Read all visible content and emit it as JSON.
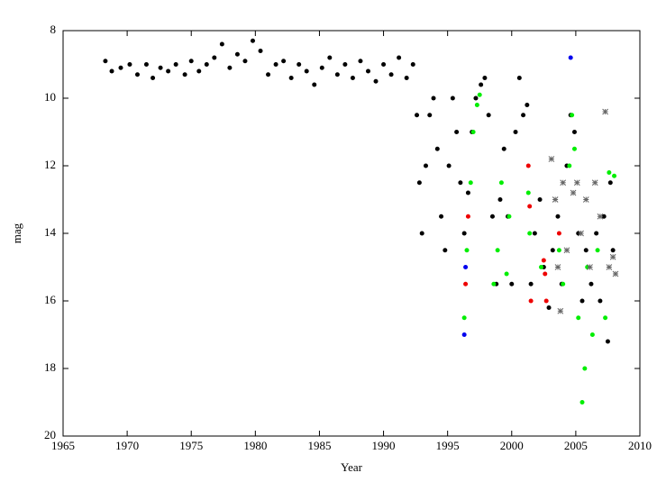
{
  "chart_data": {
    "type": "scatter",
    "xlabel": "Year",
    "ylabel": "mag",
    "xlim": [
      1965,
      2010
    ],
    "xticks": [
      1965,
      1970,
      1975,
      1980,
      1985,
      1990,
      1995,
      2000,
      2005,
      2010
    ],
    "ylim": [
      8,
      20
    ],
    "yticks": [
      8,
      10,
      12,
      14,
      16,
      18,
      20
    ],
    "invert_y": true,
    "grid": false,
    "series": [
      {
        "color": "#000000",
        "marker": "dot",
        "x": [
          1968.3,
          1968.8,
          1969.5,
          1970.2,
          1970.8,
          1971.5,
          1972.0,
          1972.6,
          1973.2,
          1973.8,
          1974.5,
          1975.0,
          1975.6,
          1976.2,
          1976.8,
          1977.4,
          1978.0,
          1978.6,
          1979.2,
          1979.8,
          1980.4,
          1981.0,
          1981.6,
          1982.2,
          1982.8,
          1983.4,
          1984.0,
          1984.6,
          1985.2,
          1985.8,
          1986.4,
          1987.0,
          1987.6,
          1988.2,
          1988.8,
          1989.4,
          1990.0,
          1990.6,
          1991.2,
          1991.8,
          1992.3,
          1992.6,
          1992.8,
          1993.0,
          1993.3,
          1993.6,
          1993.9,
          1994.2,
          1994.5,
          1994.8,
          1995.1,
          1995.4,
          1995.7,
          1996.0,
          1996.3,
          1996.6,
          1996.9,
          1997.2,
          1997.6,
          1997.9,
          1998.2,
          1998.5,
          1998.8,
          1999.1,
          1999.4,
          1999.7,
          2000.0,
          2000.3,
          2000.6,
          2000.9,
          2001.2,
          2001.5,
          2001.8,
          2002.2,
          2002.5,
          2002.9,
          2003.2,
          2003.6,
          2003.9,
          2004.3,
          2004.6,
          2004.9,
          2005.2,
          2005.5,
          2005.8,
          2006.2,
          2006.6,
          2006.9,
          2007.2,
          2007.5,
          2007.7,
          2007.9
        ],
        "values": [
          8.9,
          9.2,
          9.1,
          9.0,
          9.3,
          9.0,
          9.4,
          9.1,
          9.2,
          9.0,
          9.3,
          8.9,
          9.2,
          9.0,
          8.8,
          8.4,
          9.1,
          8.7,
          8.9,
          8.3,
          8.6,
          9.3,
          9.0,
          8.9,
          9.4,
          9.0,
          9.2,
          9.6,
          9.1,
          8.8,
          9.3,
          9.0,
          9.4,
          8.9,
          9.2,
          9.5,
          9.0,
          9.3,
          8.8,
          9.4,
          9.0,
          10.5,
          12.5,
          14.0,
          12.0,
          10.5,
          10.0,
          11.5,
          13.5,
          14.5,
          12.0,
          10.0,
          11.0,
          12.5,
          14.0,
          12.8,
          11.0,
          10.0,
          9.6,
          9.4,
          10.5,
          13.5,
          15.5,
          13.0,
          11.5,
          13.5,
          15.5,
          11.0,
          9.4,
          10.5,
          10.2,
          15.5,
          14.0,
          13.0,
          15.0,
          16.2,
          14.5,
          13.5,
          15.5,
          12.0,
          10.5,
          11.0,
          14.0,
          16.0,
          14.5,
          15.5,
          14.0,
          16.0,
          13.5,
          17.2,
          12.5,
          14.5
        ]
      },
      {
        "color": "#00ee00",
        "marker": "dot",
        "x": [
          1996.3,
          1996.5,
          1996.8,
          1997.0,
          1997.3,
          1997.5,
          1998.6,
          1998.9,
          1999.2,
          1999.6,
          1999.8,
          2001.3,
          2001.4,
          2002.3,
          2003.7,
          2004.0,
          2004.5,
          2004.7,
          2004.9,
          2005.2,
          2005.5,
          2005.7,
          2005.9,
          2006.3,
          2006.7,
          2007.3,
          2007.6,
          2008.0
        ],
        "values": [
          16.5,
          14.5,
          12.5,
          11.0,
          10.2,
          9.9,
          15.5,
          14.5,
          12.5,
          15.2,
          13.5,
          12.8,
          14.0,
          15.0,
          14.5,
          15.5,
          12.0,
          10.5,
          11.5,
          16.5,
          19.0,
          18.0,
          15.0,
          17.0,
          14.5,
          16.5,
          12.2,
          12.3
        ]
      },
      {
        "color": "#ee0000",
        "marker": "dot",
        "x": [
          1996.4,
          1996.6,
          2001.3,
          2001.4,
          2001.5,
          2002.5,
          2002.6,
          2002.7,
          2003.7
        ],
        "values": [
          15.5,
          13.5,
          12.0,
          13.2,
          16.0,
          14.8,
          15.2,
          16.0,
          14.0
        ]
      },
      {
        "color": "#0000ee",
        "marker": "dot",
        "x": [
          1996.3,
          1996.4,
          2004.6
        ],
        "values": [
          17.0,
          15.0,
          8.8
        ]
      },
      {
        "color": "#666666",
        "marker": "star",
        "x": [
          2003.1,
          2003.4,
          2003.6,
          2003.8,
          2004.0,
          2004.3,
          2004.8,
          2005.1,
          2005.4,
          2005.8,
          2006.1,
          2006.5,
          2006.9,
          2007.3,
          2007.6,
          2007.9,
          2008.1
        ],
        "values": [
          11.8,
          13.0,
          15.0,
          16.3,
          12.5,
          14.5,
          12.8,
          12.5,
          14.0,
          13.0,
          15.0,
          12.5,
          13.5,
          10.4,
          15.0,
          14.7,
          15.2
        ]
      }
    ]
  }
}
